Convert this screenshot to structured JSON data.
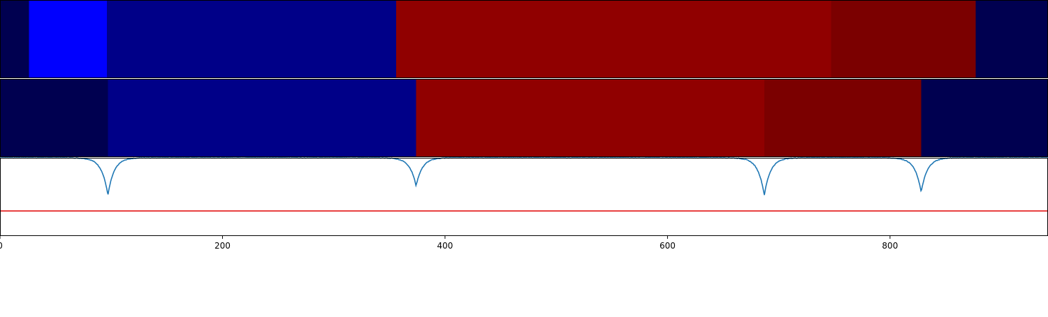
{
  "chart_data": [
    {
      "type": "heatmap",
      "xlim": [
        0,
        942
      ],
      "segments": [
        {
          "start": 0,
          "end": 26,
          "color": "#000050"
        },
        {
          "start": 26,
          "end": 96,
          "color": "#0000ff"
        },
        {
          "start": 96,
          "end": 356,
          "color": "#000088"
        },
        {
          "start": 356,
          "end": 747,
          "color": "#900000"
        },
        {
          "start": 747,
          "end": 877,
          "color": "#7b0000"
        },
        {
          "start": 877,
          "end": 942,
          "color": "#000050"
        }
      ]
    },
    {
      "type": "heatmap",
      "xlim": [
        0,
        942
      ],
      "segments": [
        {
          "start": 0,
          "end": 97,
          "color": "#000050"
        },
        {
          "start": 97,
          "end": 374,
          "color": "#000088"
        },
        {
          "start": 374,
          "end": 687,
          "color": "#900000"
        },
        {
          "start": 687,
          "end": 828,
          "color": "#7b0000"
        },
        {
          "start": 828,
          "end": 942,
          "color": "#000050"
        }
      ]
    },
    {
      "type": "line",
      "xlim": [
        0,
        942
      ],
      "ylim": [
        -1.0,
        0.0
      ],
      "xticks": [
        0,
        200,
        400,
        600,
        800
      ],
      "xtick_labels": [
        "0",
        "200",
        "400",
        "600",
        "800"
      ],
      "grid": false,
      "dips": [
        {
          "center": 97,
          "depth": -0.48
        },
        {
          "center": 374,
          "depth": -0.36
        },
        {
          "center": 687,
          "depth": -0.48
        },
        {
          "center": 828,
          "depth": -0.44
        }
      ],
      "line_color": "#1f77b4",
      "threshold": {
        "y": -0.68,
        "color": "#e00000"
      }
    }
  ]
}
